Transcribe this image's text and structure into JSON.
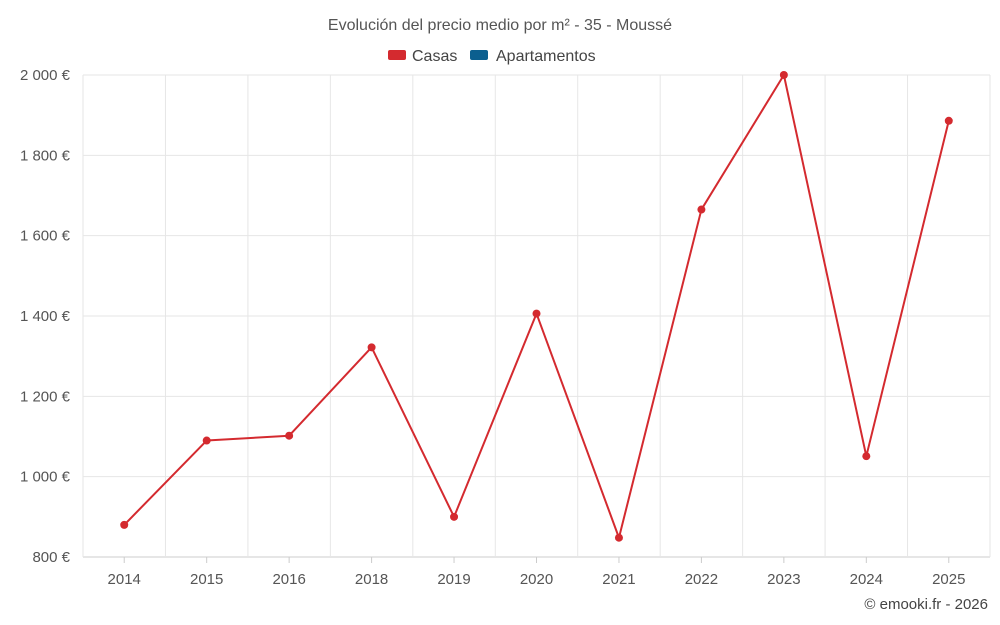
{
  "chart_data": {
    "type": "line",
    "title": "Evolución del precio medio por m² - 35 - Moussé",
    "legend": [
      {
        "name": "Casas",
        "color": "#d42a2f"
      },
      {
        "name": "Apartamentos",
        "color": "#0b5f8f"
      }
    ],
    "legend_position": "top-center",
    "categories": [
      "2014",
      "2015",
      "2016",
      "2018",
      "2019",
      "2020",
      "2021",
      "2022",
      "2023",
      "2024",
      "2025"
    ],
    "series": [
      {
        "name": "Casas",
        "color": "#d42a2f",
        "values": [
          880,
          1090,
          1102,
          1322,
          900,
          1406,
          848,
          1665,
          2000,
          1051,
          1886
        ]
      }
    ],
    "ylim": [
      800,
      2000
    ],
    "yticks": [
      800,
      1000,
      1200,
      1400,
      1600,
      1800,
      2000
    ],
    "ytick_labels": [
      "800 €",
      "1 000 €",
      "1 200 €",
      "1 400 €",
      "1 600 €",
      "1 800 €",
      "2 000 €"
    ],
    "grid": true,
    "xlabel": "",
    "ylabel": ""
  },
  "credit": "© emooki.fr - 2026"
}
